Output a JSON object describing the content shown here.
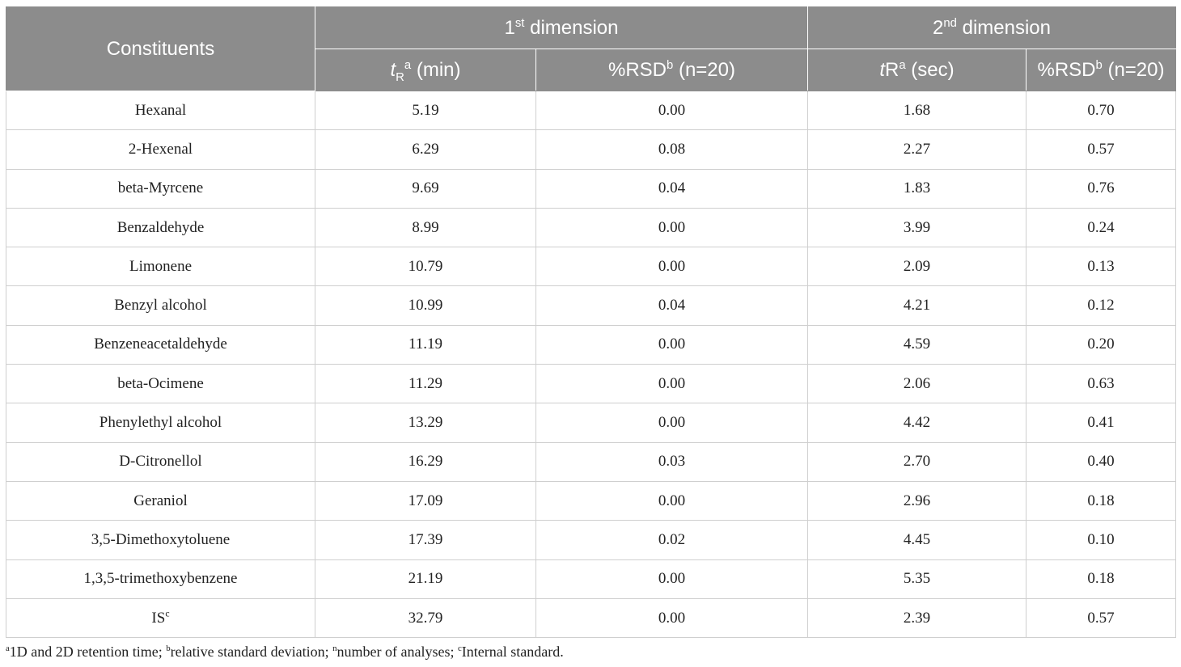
{
  "table": {
    "header": {
      "constituents": "Constituents",
      "dim1": {
        "base": "1",
        "sup": "st",
        "rest": " dimension"
      },
      "dim2": {
        "base": "2",
        "sup": "nd",
        "rest": " dimension"
      },
      "col_tr1": {
        "t": "t",
        "sub": "R",
        "sup": "a",
        "rest": " (min)"
      },
      "col_rsd1": {
        "base": "%RSD",
        "sup": "b",
        "rest": " (n=20)"
      },
      "col_tr2": {
        "t": "t",
        "base": "R",
        "sup": "a",
        "rest": " (sec)"
      },
      "col_rsd2": {
        "base": "%RSD",
        "sup": "b",
        "rest": " (n=20)"
      }
    },
    "rows": [
      {
        "name": "Hexanal",
        "name_sup": "",
        "tr1": "5.19",
        "rsd1": "0.00",
        "tr2": "1.68",
        "rsd2": "0.70"
      },
      {
        "name": "2-Hexenal",
        "name_sup": "",
        "tr1": "6.29",
        "rsd1": "0.08",
        "tr2": "2.27",
        "rsd2": "0.57"
      },
      {
        "name": "beta-Myrcene",
        "name_sup": "",
        "tr1": "9.69",
        "rsd1": "0.04",
        "tr2": "1.83",
        "rsd2": "0.76"
      },
      {
        "name": "Benzaldehyde",
        "name_sup": "",
        "tr1": "8.99",
        "rsd1": "0.00",
        "tr2": "3.99",
        "rsd2": "0.24"
      },
      {
        "name": "Limonene",
        "name_sup": "",
        "tr1": "10.79",
        "rsd1": "0.00",
        "tr2": "2.09",
        "rsd2": "0.13"
      },
      {
        "name": "Benzyl alcohol",
        "name_sup": "",
        "tr1": "10.99",
        "rsd1": "0.04",
        "tr2": "4.21",
        "rsd2": "0.12"
      },
      {
        "name": "Benzeneacetaldehyde",
        "name_sup": "",
        "tr1": "11.19",
        "rsd1": "0.00",
        "tr2": "4.59",
        "rsd2": "0.20"
      },
      {
        "name": "beta-Ocimene",
        "name_sup": "",
        "tr1": "11.29",
        "rsd1": "0.00",
        "tr2": "2.06",
        "rsd2": "0.63"
      },
      {
        "name": "Phenylethyl alcohol",
        "name_sup": "",
        "tr1": "13.29",
        "rsd1": "0.00",
        "tr2": "4.42",
        "rsd2": "0.41"
      },
      {
        "name": "D-Citronellol",
        "name_sup": "",
        "tr1": "16.29",
        "rsd1": "0.03",
        "tr2": "2.70",
        "rsd2": "0.40"
      },
      {
        "name": "Geraniol",
        "name_sup": "",
        "tr1": "17.09",
        "rsd1": "0.00",
        "tr2": "2.96",
        "rsd2": "0.18"
      },
      {
        "name": "3,5-Dimethoxytoluene",
        "name_sup": "",
        "tr1": "17.39",
        "rsd1": "0.02",
        "tr2": "4.45",
        "rsd2": "0.10"
      },
      {
        "name": "1,3,5-trimethoxybenzene",
        "name_sup": "",
        "tr1": "21.19",
        "rsd1": "0.00",
        "tr2": "5.35",
        "rsd2": "0.18"
      },
      {
        "name": "IS",
        "name_sup": "c",
        "tr1": "32.79",
        "rsd1": "0.00",
        "tr2": "2.39",
        "rsd2": "0.57"
      }
    ]
  },
  "footnote": {
    "a_sup": "a",
    "a_text": "1D and 2D retention time; ",
    "b_sup": "b",
    "b_text": "relative standard deviation; ",
    "n_sup": "n",
    "n_text": "number of analyses; ",
    "c_sup": "c",
    "c_text": "Internal standard."
  },
  "colors": {
    "header_bg": "#8c8c8c",
    "header_text": "#ffffff",
    "grid_line": "#cfcfcf"
  }
}
